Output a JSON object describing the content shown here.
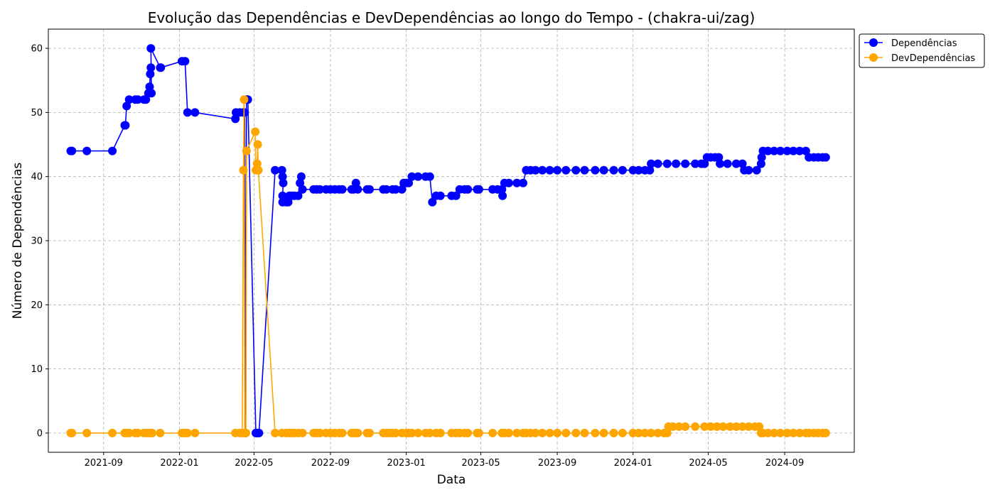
{
  "chart_data": {
    "type": "line",
    "title": "Evolução das Dependências e DevDependências ao longo do Tempo - (chakra-ui/zag)",
    "xlabel": "Data",
    "ylabel": "Número de Dependências",
    "xlim": [
      "2021-06-04",
      "2024-12-22"
    ],
    "ylim": [
      -3,
      63
    ],
    "grid": true,
    "legend_position": "outside-top-right",
    "xticks": [
      {
        "date": "2021-09-01",
        "label": "2021-09"
      },
      {
        "date": "2022-01-01",
        "label": "2022-01"
      },
      {
        "date": "2022-05-01",
        "label": "2022-05"
      },
      {
        "date": "2022-09-01",
        "label": "2022-09"
      },
      {
        "date": "2023-01-01",
        "label": "2023-01"
      },
      {
        "date": "2023-05-01",
        "label": "2023-05"
      },
      {
        "date": "2023-09-01",
        "label": "2023-09"
      },
      {
        "date": "2024-01-01",
        "label": "2024-01"
      },
      {
        "date": "2024-05-01",
        "label": "2024-05"
      },
      {
        "date": "2024-09-01",
        "label": "2024-09"
      }
    ],
    "yticks": [
      0,
      10,
      20,
      30,
      40,
      50,
      60
    ],
    "series": [
      {
        "name": "Dependências",
        "color": "#0000ff",
        "points": [
          [
            "2021-07-10",
            44
          ],
          [
            "2021-07-12",
            44
          ],
          [
            "2021-08-05",
            44
          ],
          [
            "2021-09-15",
            44
          ],
          [
            "2021-10-05",
            48
          ],
          [
            "2021-10-06",
            48
          ],
          [
            "2021-10-08",
            51
          ],
          [
            "2021-10-12",
            52
          ],
          [
            "2021-10-22",
            52
          ],
          [
            "2021-10-26",
            52
          ],
          [
            "2021-11-05",
            52
          ],
          [
            "2021-11-08",
            52
          ],
          [
            "2021-11-12",
            53
          ],
          [
            "2021-11-14",
            54
          ],
          [
            "2021-11-15",
            56
          ],
          [
            "2021-11-16",
            57
          ],
          [
            "2021-11-17",
            53
          ],
          [
            "2021-11-16",
            60
          ],
          [
            "2021-12-01",
            57
          ],
          [
            "2021-12-02",
            57
          ],
          [
            "2022-01-05",
            58
          ],
          [
            "2022-01-10",
            58
          ],
          [
            "2022-01-14",
            50
          ],
          [
            "2022-01-26",
            50
          ],
          [
            "2022-04-01",
            49
          ],
          [
            "2022-04-02",
            50
          ],
          [
            "2022-04-08",
            50
          ],
          [
            "2022-04-14",
            50
          ],
          [
            "2022-04-16",
            50
          ],
          [
            "2022-04-17",
            0
          ],
          [
            "2022-04-19",
            52
          ],
          [
            "2022-04-21",
            52
          ],
          [
            "2022-05-04",
            0
          ],
          [
            "2022-05-06",
            0
          ],
          [
            "2022-05-07",
            0
          ],
          [
            "2022-05-09",
            0
          ],
          [
            "2022-06-04",
            41
          ],
          [
            "2022-06-15",
            41
          ],
          [
            "2022-06-16",
            40
          ],
          [
            "2022-06-17",
            39
          ],
          [
            "2022-06-16",
            37
          ],
          [
            "2022-06-16",
            36
          ],
          [
            "2022-06-22",
            36
          ],
          [
            "2022-06-25",
            36
          ],
          [
            "2022-06-27",
            37
          ],
          [
            "2022-07-01",
            37
          ],
          [
            "2022-07-05",
            37
          ],
          [
            "2022-07-11",
            37
          ],
          [
            "2022-07-14",
            39
          ],
          [
            "2022-07-16",
            40
          ],
          [
            "2022-07-18",
            38
          ],
          [
            "2022-08-05",
            38
          ],
          [
            "2022-08-10",
            38
          ],
          [
            "2022-08-15",
            38
          ],
          [
            "2022-08-25",
            38
          ],
          [
            "2022-09-01",
            38
          ],
          [
            "2022-09-08",
            38
          ],
          [
            "2022-09-15",
            38
          ],
          [
            "2022-09-20",
            38
          ],
          [
            "2022-10-05",
            38
          ],
          [
            "2022-10-08",
            38
          ],
          [
            "2022-10-12",
            39
          ],
          [
            "2022-10-15",
            38
          ],
          [
            "2022-10-30",
            38
          ],
          [
            "2022-11-03",
            38
          ],
          [
            "2022-11-25",
            38
          ],
          [
            "2022-11-30",
            38
          ],
          [
            "2022-12-10",
            38
          ],
          [
            "2022-12-15",
            38
          ],
          [
            "2022-12-25",
            38
          ],
          [
            "2022-12-28",
            39
          ],
          [
            "2023-01-01",
            39
          ],
          [
            "2023-01-05",
            39
          ],
          [
            "2023-01-10",
            40
          ],
          [
            "2023-01-20",
            40
          ],
          [
            "2023-02-01",
            40
          ],
          [
            "2023-02-08",
            40
          ],
          [
            "2023-02-12",
            36
          ],
          [
            "2023-02-18",
            37
          ],
          [
            "2023-02-25",
            37
          ],
          [
            "2023-03-15",
            37
          ],
          [
            "2023-03-22",
            37
          ],
          [
            "2023-03-28",
            38
          ],
          [
            "2023-04-05",
            38
          ],
          [
            "2023-04-10",
            38
          ],
          [
            "2023-04-25",
            38
          ],
          [
            "2023-04-28",
            38
          ],
          [
            "2023-05-20",
            38
          ],
          [
            "2023-05-28",
            38
          ],
          [
            "2023-06-04",
            38
          ],
          [
            "2023-06-05",
            37
          ],
          [
            "2023-06-08",
            39
          ],
          [
            "2023-06-15",
            39
          ],
          [
            "2023-06-28",
            39
          ],
          [
            "2023-07-08",
            39
          ],
          [
            "2023-07-13",
            41
          ],
          [
            "2023-07-20",
            41
          ],
          [
            "2023-07-28",
            41
          ],
          [
            "2023-08-08",
            41
          ],
          [
            "2023-08-20",
            41
          ],
          [
            "2023-09-01",
            41
          ],
          [
            "2023-09-15",
            41
          ],
          [
            "2023-10-01",
            41
          ],
          [
            "2023-10-15",
            41
          ],
          [
            "2023-11-01",
            41
          ],
          [
            "2023-11-15",
            41
          ],
          [
            "2023-12-01",
            41
          ],
          [
            "2023-12-15",
            41
          ],
          [
            "2024-01-01",
            41
          ],
          [
            "2024-01-10",
            41
          ],
          [
            "2024-01-20",
            41
          ],
          [
            "2024-01-28",
            41
          ],
          [
            "2024-01-30",
            42
          ],
          [
            "2024-02-10",
            42
          ],
          [
            "2024-02-25",
            42
          ],
          [
            "2024-03-10",
            42
          ],
          [
            "2024-03-25",
            42
          ],
          [
            "2024-04-10",
            42
          ],
          [
            "2024-04-20",
            42
          ],
          [
            "2024-04-25",
            42
          ],
          [
            "2024-04-29",
            43
          ],
          [
            "2024-05-05",
            43
          ],
          [
            "2024-05-12",
            43
          ],
          [
            "2024-05-18",
            43
          ],
          [
            "2024-05-20",
            42
          ],
          [
            "2024-06-01",
            42
          ],
          [
            "2024-06-15",
            42
          ],
          [
            "2024-06-25",
            42
          ],
          [
            "2024-06-28",
            41
          ],
          [
            "2024-07-05",
            41
          ],
          [
            "2024-07-18",
            41
          ],
          [
            "2024-07-25",
            42
          ],
          [
            "2024-07-26",
            43
          ],
          [
            "2024-07-28",
            44
          ],
          [
            "2024-08-05",
            44
          ],
          [
            "2024-08-15",
            44
          ],
          [
            "2024-08-25",
            44
          ],
          [
            "2024-09-05",
            44
          ],
          [
            "2024-09-15",
            44
          ],
          [
            "2024-09-25",
            44
          ],
          [
            "2024-10-05",
            44
          ],
          [
            "2024-10-10",
            43
          ],
          [
            "2024-10-18",
            43
          ],
          [
            "2024-10-25",
            43
          ],
          [
            "2024-11-01",
            43
          ],
          [
            "2024-11-06",
            43
          ]
        ]
      },
      {
        "name": "DevDependências",
        "color": "#ffa500",
        "points": [
          [
            "2021-07-10",
            0
          ],
          [
            "2021-07-12",
            0
          ],
          [
            "2021-08-05",
            0
          ],
          [
            "2021-09-15",
            0
          ],
          [
            "2021-10-05",
            0
          ],
          [
            "2021-10-08",
            0
          ],
          [
            "2021-10-12",
            0
          ],
          [
            "2021-10-22",
            0
          ],
          [
            "2021-10-26",
            0
          ],
          [
            "2021-11-05",
            0
          ],
          [
            "2021-11-10",
            0
          ],
          [
            "2021-11-15",
            0
          ],
          [
            "2021-11-18",
            0
          ],
          [
            "2021-12-01",
            0
          ],
          [
            "2022-01-05",
            0
          ],
          [
            "2022-01-10",
            0
          ],
          [
            "2022-01-14",
            0
          ],
          [
            "2022-01-26",
            0
          ],
          [
            "2022-04-01",
            0
          ],
          [
            "2022-04-08",
            0
          ],
          [
            "2022-04-12",
            0
          ],
          [
            "2022-04-14",
            41
          ],
          [
            "2022-04-15",
            52
          ],
          [
            "2022-04-16",
            0
          ],
          [
            "2022-04-18",
            0
          ],
          [
            "2022-04-19",
            44
          ],
          [
            "2022-05-03",
            47
          ],
          [
            "2022-05-04",
            41
          ],
          [
            "2022-05-06",
            42
          ],
          [
            "2022-05-07",
            45
          ],
          [
            "2022-05-08",
            41
          ],
          [
            "2022-06-04",
            0
          ],
          [
            "2022-06-15",
            0
          ],
          [
            "2022-06-22",
            0
          ],
          [
            "2022-06-27",
            0
          ],
          [
            "2022-07-01",
            0
          ],
          [
            "2022-07-05",
            0
          ],
          [
            "2022-07-11",
            0
          ],
          [
            "2022-07-18",
            0
          ],
          [
            "2022-08-05",
            0
          ],
          [
            "2022-08-10",
            0
          ],
          [
            "2022-08-15",
            0
          ],
          [
            "2022-08-25",
            0
          ],
          [
            "2022-09-01",
            0
          ],
          [
            "2022-09-08",
            0
          ],
          [
            "2022-09-15",
            0
          ],
          [
            "2022-09-20",
            0
          ],
          [
            "2022-10-05",
            0
          ],
          [
            "2022-10-08",
            0
          ],
          [
            "2022-10-12",
            0
          ],
          [
            "2022-10-15",
            0
          ],
          [
            "2022-10-30",
            0
          ],
          [
            "2022-11-03",
            0
          ],
          [
            "2022-11-25",
            0
          ],
          [
            "2022-11-30",
            0
          ],
          [
            "2022-12-05",
            0
          ],
          [
            "2022-12-10",
            0
          ],
          [
            "2022-12-15",
            0
          ],
          [
            "2022-12-25",
            0
          ],
          [
            "2023-01-01",
            0
          ],
          [
            "2023-01-05",
            0
          ],
          [
            "2023-01-10",
            0
          ],
          [
            "2023-01-20",
            0
          ],
          [
            "2023-02-01",
            0
          ],
          [
            "2023-02-08",
            0
          ],
          [
            "2023-02-18",
            0
          ],
          [
            "2023-02-25",
            0
          ],
          [
            "2023-03-15",
            0
          ],
          [
            "2023-03-22",
            0
          ],
          [
            "2023-03-28",
            0
          ],
          [
            "2023-04-05",
            0
          ],
          [
            "2023-04-10",
            0
          ],
          [
            "2023-04-25",
            0
          ],
          [
            "2023-04-28",
            0
          ],
          [
            "2023-05-20",
            0
          ],
          [
            "2023-06-04",
            0
          ],
          [
            "2023-06-08",
            0
          ],
          [
            "2023-06-15",
            0
          ],
          [
            "2023-06-28",
            0
          ],
          [
            "2023-07-08",
            0
          ],
          [
            "2023-07-13",
            0
          ],
          [
            "2023-07-20",
            0
          ],
          [
            "2023-07-28",
            0
          ],
          [
            "2023-08-08",
            0
          ],
          [
            "2023-08-20",
            0
          ],
          [
            "2023-09-01",
            0
          ],
          [
            "2023-09-15",
            0
          ],
          [
            "2023-10-01",
            0
          ],
          [
            "2023-10-15",
            0
          ],
          [
            "2023-11-01",
            0
          ],
          [
            "2023-11-15",
            0
          ],
          [
            "2023-12-01",
            0
          ],
          [
            "2023-12-15",
            0
          ],
          [
            "2024-01-01",
            0
          ],
          [
            "2024-01-10",
            0
          ],
          [
            "2024-01-20",
            0
          ],
          [
            "2024-01-30",
            0
          ],
          [
            "2024-02-10",
            0
          ],
          [
            "2024-02-20",
            0
          ],
          [
            "2024-02-25",
            0
          ],
          [
            "2024-02-27",
            1
          ],
          [
            "2024-03-05",
            1
          ],
          [
            "2024-03-15",
            1
          ],
          [
            "2024-03-25",
            1
          ],
          [
            "2024-04-10",
            1
          ],
          [
            "2024-04-25",
            1
          ],
          [
            "2024-05-05",
            1
          ],
          [
            "2024-05-15",
            1
          ],
          [
            "2024-05-25",
            1
          ],
          [
            "2024-06-05",
            1
          ],
          [
            "2024-06-15",
            1
          ],
          [
            "2024-06-25",
            1
          ],
          [
            "2024-07-05",
            1
          ],
          [
            "2024-07-15",
            1
          ],
          [
            "2024-07-22",
            1
          ],
          [
            "2024-07-25",
            0
          ],
          [
            "2024-07-28",
            0
          ],
          [
            "2024-08-05",
            0
          ],
          [
            "2024-08-15",
            0
          ],
          [
            "2024-08-25",
            0
          ],
          [
            "2024-09-05",
            0
          ],
          [
            "2024-09-15",
            0
          ],
          [
            "2024-09-25",
            0
          ],
          [
            "2024-10-05",
            0
          ],
          [
            "2024-10-10",
            0
          ],
          [
            "2024-10-18",
            0
          ],
          [
            "2024-10-25",
            0
          ],
          [
            "2024-11-01",
            0
          ],
          [
            "2024-11-06",
            0
          ]
        ]
      }
    ]
  }
}
